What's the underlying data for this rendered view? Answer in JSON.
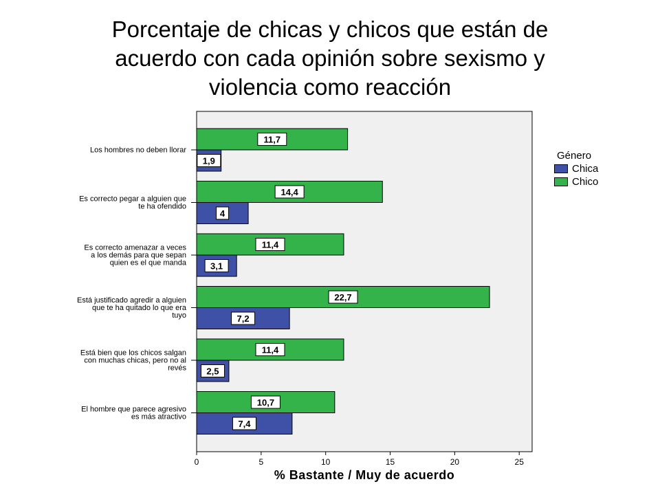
{
  "chart_data": {
    "type": "bar",
    "orientation": "horizontal",
    "title": "Porcentaje de chicas y  chicos que están de acuerdo con cada opinión  sobre sexismo  y violencia  como reacción",
    "title_lines": [
      "Porcentaje de chicas y  chicos que están de",
      "acuerdo con cada opinión  sobre sexismo  y",
      "violencia  como reacción"
    ],
    "xlabel": "% Bastante / Muy de acuerdo",
    "xlim": [
      0,
      26
    ],
    "xticks": [
      0,
      5,
      10,
      15,
      20,
      25
    ],
    "legend_title": "Género",
    "categories": [
      [
        "Los hombres no deben llorar"
      ],
      [
        "Es correcto pegar a alguien que",
        "te ha ofendido"
      ],
      [
        "Es correcto amenazar a veces",
        "a los demás para que sepan",
        "quien es el que manda"
      ],
      [
        "Está justificado agredir a alguien",
        "que te ha quitado lo que era",
        "tuyo"
      ],
      [
        "Está bien que los chicos salgan",
        "con muchas chicas, pero no al",
        "revés"
      ],
      [
        "El hombre que parece agresivo",
        "es más atractivo"
      ]
    ],
    "series": [
      {
        "name": "Chico",
        "color": "#33b34a",
        "values": [
          11.7,
          14.4,
          11.4,
          22.7,
          11.4,
          10.7
        ],
        "labels": [
          "11,7",
          "14,4",
          "11,4",
          "22,7",
          "11,4",
          "10,7"
        ]
      },
      {
        "name": "Chica",
        "color": "#3f51a6",
        "values": [
          1.9,
          4,
          3.1,
          7.2,
          2.5,
          7.4
        ],
        "labels": [
          "1,9",
          "4",
          "3,1",
          "7,2",
          "2,5",
          "7,4"
        ]
      }
    ]
  }
}
